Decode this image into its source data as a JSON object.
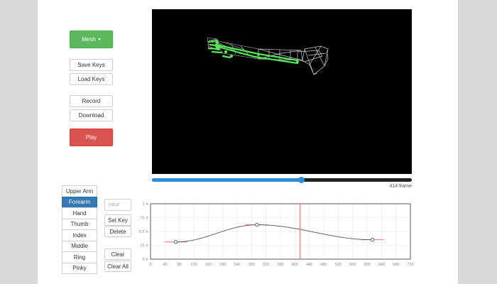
{
  "controls": {
    "mesh_label": "Mesh",
    "save_keys_label": "Save Keys",
    "load_keys_label": "Load Keys",
    "record_label": "Record",
    "download_label": "Download",
    "play_label": "Play"
  },
  "timeline": {
    "current_frame": 414,
    "max_frame": 720,
    "frame_text": "414 frame"
  },
  "bones": {
    "items": [
      "Upper Arm",
      "Forearm",
      "Hand",
      "Thumb",
      "Index",
      "Middle",
      "Ring",
      "Pinky"
    ],
    "selected": "Forearm"
  },
  "keyframe": {
    "value_placeholder": "value",
    "set_key_label": "Set Key",
    "delete_label": "Delete",
    "clear_label": "Clear",
    "clear_all_label": "Clear All"
  },
  "chart_data": {
    "type": "line",
    "x_ticks": [
      0,
      40,
      80,
      120,
      160,
      200,
      240,
      280,
      320,
      360,
      400,
      440,
      480,
      520,
      560,
      600,
      640,
      680,
      720
    ],
    "y_ticks": [
      "0 π",
      "0.25 π",
      "0.5 π",
      "0.75 π",
      "1 π"
    ],
    "xlim": [
      0,
      720
    ],
    "ylim": [
      0,
      1
    ],
    "keys": [
      {
        "x": 70,
        "y": 0.31
      },
      {
        "x": 295,
        "y": 0.62
      },
      {
        "x": 615,
        "y": 0.35
      }
    ],
    "cursor_x": 414,
    "colors": {
      "curve": "#555555",
      "cursor": "#ff7070",
      "tangent": "#ff5a5a",
      "key": "#4a4aa8"
    }
  }
}
